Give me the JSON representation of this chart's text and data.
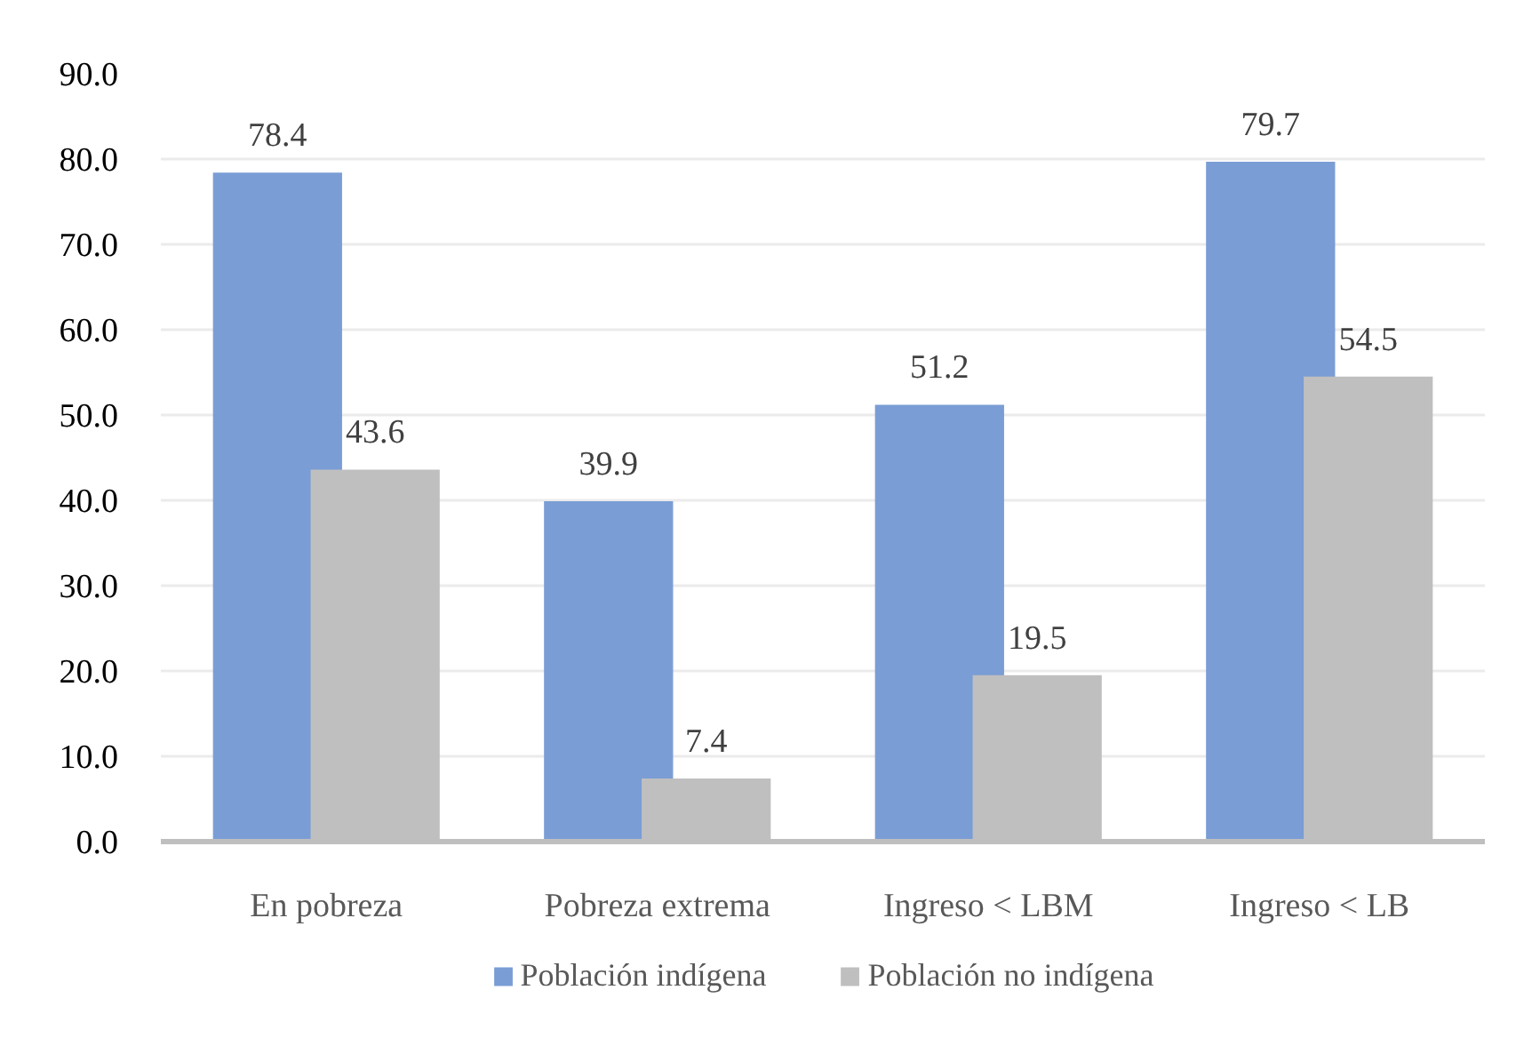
{
  "chart_data": {
    "type": "bar",
    "categories": [
      "En pobreza",
      "Pobreza extrema",
      "Ingreso < LBM",
      "Ingreso < LB"
    ],
    "series": [
      {
        "name": "Población indígena",
        "color": "#7a9dd5",
        "values": [
          78.4,
          39.9,
          51.2,
          79.7
        ]
      },
      {
        "name": "Población no indígena",
        "color": "#bfbfbf",
        "values": [
          43.6,
          7.4,
          19.5,
          54.5
        ]
      }
    ],
    "ylim": [
      0,
      90
    ],
    "yticks": [
      {
        "value": 0,
        "label": "0.0"
      },
      {
        "value": 10,
        "label": "10.0"
      },
      {
        "value": 20,
        "label": "20.0"
      },
      {
        "value": 30,
        "label": "30.0"
      },
      {
        "value": 40,
        "label": "40.0"
      },
      {
        "value": 50,
        "label": "50.0"
      },
      {
        "value": 60,
        "label": "60.0"
      },
      {
        "value": 70,
        "label": "70.0"
      },
      {
        "value": 80,
        "label": "80.0"
      },
      {
        "value": 90,
        "label": "90.0"
      }
    ],
    "grid": "y",
    "legend": "bottom",
    "data_labels": true
  }
}
